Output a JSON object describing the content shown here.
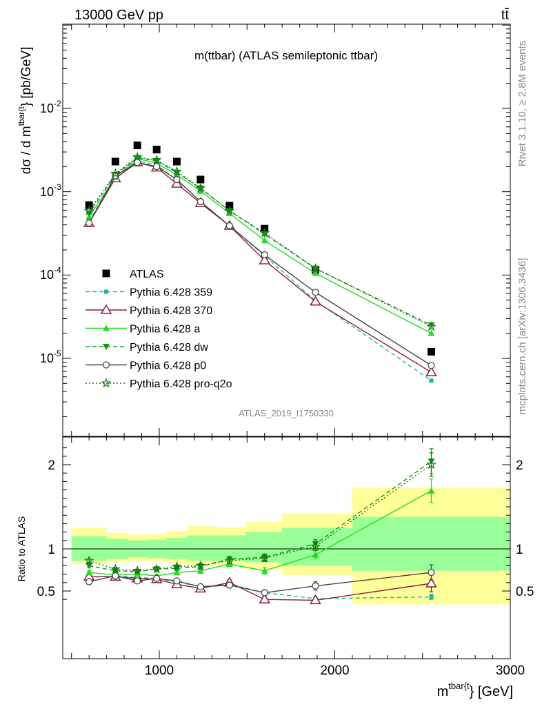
{
  "header": {
    "left": "13000 GeV pp",
    "right": "tt̄"
  },
  "side": {
    "rivet": "Rivet 3.1.10, ≥ 2.8M events",
    "mcplots": "mcplots.cern.ch [arXiv:1306.3436]"
  },
  "chart_data": [
    {
      "type": "line",
      "title": "m(ttbar) (ATLAS semileptonic ttbar)",
      "watermark": "ATLAS_2019_I1750330",
      "ylabel": "dσ / d m^{tbar{t}} [pb/GeV]",
      "yscale": "log",
      "ylim": [
        1.2e-06,
        0.1
      ],
      "xlim": [
        450,
        3000
      ],
      "yticks": [
        "10^{-5}",
        "10^{-4}",
        "10^{-3}",
        "10^{-2}"
      ],
      "x": [
        600,
        750,
        875,
        985,
        1100,
        1235,
        1400,
        1600,
        1890,
        2550
      ],
      "xerr": [
        [
          500,
          700
        ],
        [
          700,
          825
        ],
        [
          825,
          930
        ],
        [
          930,
          1040
        ],
        [
          1040,
          1160
        ],
        [
          1160,
          1310
        ],
        [
          1310,
          1490
        ],
        [
          1490,
          1700
        ],
        [
          1700,
          2100
        ],
        [
          2100,
          3000
        ]
      ],
      "legend_position": "center-left",
      "series": [
        {
          "name": "ATLAS",
          "style": "data",
          "color": "#000000",
          "values": [
            0.00069,
            0.0023,
            0.0036,
            0.0032,
            0.0023,
            0.0014,
            0.00068,
            0.00036,
            0.000115,
            1.2e-05
          ]
        },
        {
          "name": "Pythia 6.428 359",
          "style": "dashed",
          "marker": "square",
          "color": "#17b8a0",
          "values": [
            0.00044,
            0.00155,
            0.00235,
            0.0021,
            0.00138,
            0.00076,
            0.00039,
            0.00017,
            4.9e-05,
            5.4e-06
          ]
        },
        {
          "name": "Pythia 6.428 370",
          "style": "solid",
          "marker": "open-triangle",
          "color": "#8b1a3a",
          "values": [
            0.00042,
            0.00145,
            0.00225,
            0.00195,
            0.00125,
            0.00073,
            0.00039,
            0.00015,
            4.8e-05,
            6.8e-06
          ]
        },
        {
          "name": "Pythia 6.428 a",
          "style": "solid",
          "marker": "filled-triangle",
          "color": "#22dd22",
          "values": [
            0.0005,
            0.0015,
            0.0025,
            0.0022,
            0.0016,
            0.00102,
            0.00055,
            0.00026,
            0.000105,
            2e-05
          ]
        },
        {
          "name": "Pythia 6.428 dw",
          "style": "dashed",
          "marker": "filled-triangle-down",
          "color": "#119911",
          "values": [
            0.00055,
            0.0016,
            0.00255,
            0.00235,
            0.0017,
            0.0011,
            0.00059,
            0.00031,
            0.00012,
            2.5e-05
          ]
        },
        {
          "name": "Pythia 6.428 p0",
          "style": "solid",
          "marker": "open-circle",
          "color": "#444444",
          "values": [
            0.00042,
            0.00155,
            0.00225,
            0.002,
            0.0014,
            0.00076,
            0.00039,
            0.000175,
            6.2e-05,
            8.2e-06
          ]
        },
        {
          "name": "Pythia 6.428 pro-q2o",
          "style": "dotted",
          "marker": "open-star",
          "color": "#117711",
          "values": [
            0.00059,
            0.00165,
            0.0026,
            0.0024,
            0.00175,
            0.0011,
            0.00059,
            0.00032,
            0.00012,
            2.4e-05
          ]
        }
      ]
    },
    {
      "type": "line",
      "ylabel": "Ratio to ATLAS",
      "xlabel": "m^{tbar{t}} [GeV]",
      "ylim": [
        0.34,
        2.28
      ],
      "xlim": [
        450,
        3000
      ],
      "yticks": [
        "0.5",
        "1",
        "2"
      ],
      "xticks": [
        "1000",
        "2000",
        "3000"
      ],
      "bands": [
        {
          "x": [
            500,
            700
          ],
          "inner": [
            0.86,
            1.15
          ],
          "outer": [
            0.82,
            1.25
          ]
        },
        {
          "x": [
            700,
            825
          ],
          "inner": [
            0.88,
            1.12
          ],
          "outer": [
            0.84,
            1.19
          ]
        },
        {
          "x": [
            825,
            930
          ],
          "inner": [
            0.9,
            1.1
          ],
          "outer": [
            0.86,
            1.17
          ]
        },
        {
          "x": [
            930,
            1040
          ],
          "inner": [
            0.89,
            1.11
          ],
          "outer": [
            0.85,
            1.18
          ]
        },
        {
          "x": [
            1040,
            1160
          ],
          "inner": [
            0.88,
            1.13
          ],
          "outer": [
            0.83,
            1.21
          ]
        },
        {
          "x": [
            1160,
            1310
          ],
          "inner": [
            0.86,
            1.16
          ],
          "outer": [
            0.8,
            1.27
          ]
        },
        {
          "x": [
            1310,
            1490
          ],
          "inner": [
            0.86,
            1.16
          ],
          "outer": [
            0.8,
            1.26
          ]
        },
        {
          "x": [
            1490,
            1700
          ],
          "inner": [
            0.84,
            1.2
          ],
          "outer": [
            0.76,
            1.32
          ]
        },
        {
          "x": [
            1700,
            2100
          ],
          "inner": [
            0.8,
            1.25
          ],
          "outer": [
            0.69,
            1.42
          ]
        },
        {
          "x": [
            2100,
            3000
          ],
          "inner": [
            0.74,
            1.38
          ],
          "outer": [
            0.34,
            1.72
          ]
        }
      ],
      "series": [
        {
          "name": "Pythia 6.428 359",
          "values": [
            0.66,
            0.68,
            0.66,
            0.65,
            0.61,
            0.55,
            0.58,
            0.48,
            0.41,
            0.43
          ],
          "err": [
            0.02,
            0.02,
            0.02,
            0.02,
            0.02,
            0.02,
            0.02,
            0.02,
            0.02,
            0.03
          ]
        },
        {
          "name": "Pythia 6.428 370",
          "values": [
            0.67,
            0.67,
            0.65,
            0.64,
            0.58,
            0.53,
            0.6,
            0.4,
            0.39,
            0.59
          ],
          "err": [
            0.02,
            0.02,
            0.02,
            0.02,
            0.02,
            0.02,
            0.03,
            0.03,
            0.03,
            0.1
          ]
        },
        {
          "name": "Pythia 6.428 a",
          "values": [
            0.72,
            0.69,
            0.7,
            0.68,
            0.72,
            0.74,
            0.82,
            0.74,
            0.93,
            1.69
          ],
          "err": [
            0.02,
            0.02,
            0.02,
            0.02,
            0.02,
            0.03,
            0.03,
            0.04,
            0.05,
            0.14
          ]
        },
        {
          "name": "Pythia 6.428 dw",
          "values": [
            0.8,
            0.74,
            0.73,
            0.76,
            0.77,
            0.79,
            0.88,
            0.9,
            1.06,
            2.04
          ],
          "err": [
            0.02,
            0.02,
            0.02,
            0.02,
            0.02,
            0.03,
            0.03,
            0.04,
            0.05,
            0.15
          ]
        },
        {
          "name": "Pythia 6.428 p0",
          "values": [
            0.61,
            0.68,
            0.62,
            0.65,
            0.62,
            0.55,
            0.57,
            0.48,
            0.56,
            0.72
          ],
          "err": [
            0.02,
            0.02,
            0.02,
            0.02,
            0.02,
            0.02,
            0.03,
            0.03,
            0.05,
            0.09
          ]
        },
        {
          "name": "Pythia 6.428 pro-q2o",
          "values": [
            0.86,
            0.76,
            0.74,
            0.76,
            0.79,
            0.8,
            0.86,
            0.89,
            1.03,
            2.0
          ],
          "err": [
            0.02,
            0.02,
            0.02,
            0.02,
            0.02,
            0.03,
            0.03,
            0.04,
            0.05,
            0.14
          ]
        }
      ]
    }
  ],
  "colors": {
    "band_inner": "#99ff99",
    "band_outer": "#ffff99"
  }
}
